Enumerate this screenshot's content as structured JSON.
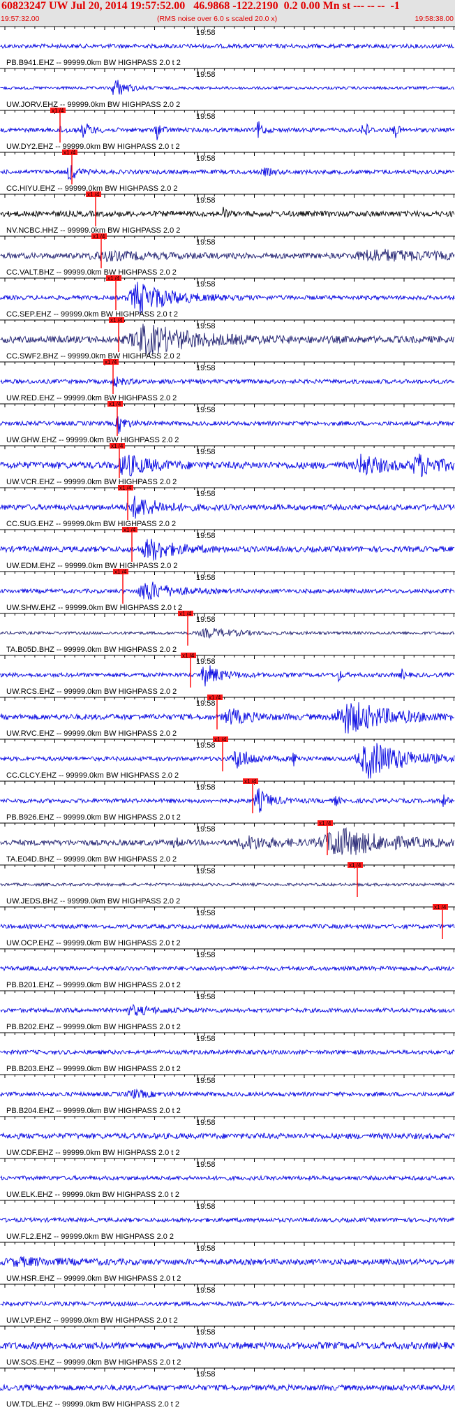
{
  "header": {
    "title": "60823247 UW Jul 20, 2014 19:57:52.00   46.9868 -122.2190  0.2 0.00 Mn st --- -- --  -1",
    "start_time": "19:57:32.00",
    "note": "(RMS noise over 6.0 s scaled 20.0 x)",
    "end_time": "19:58:38.00"
  },
  "minute_label": "19:58",
  "pick_label": "x1 /4",
  "traces": [
    {
      "label": "PB.B941.EHZ -- 99999.0km BW  HIGHPASS  2.0 t 2",
      "color": "#0000e0",
      "amp": 3,
      "events": [],
      "pick": null
    },
    {
      "label": "UW.JORV.EHZ -- 99999.0km BW  HIGHPASS  2.0  2",
      "color": "#0000e0",
      "amp": 2,
      "events": [
        [
          165,
          14,
          14
        ]
      ],
      "pick": null
    },
    {
      "label": "UW.DY2.EHZ -- 99999.0km BW  HIGHPASS  2.0 t 2",
      "color": "#0000e0",
      "amp": 3,
      "events": [
        [
          85,
          10,
          4
        ],
        [
          120,
          10,
          10
        ],
        [
          225,
          6,
          12
        ],
        [
          370,
          6,
          12
        ],
        [
          520,
          5,
          18
        ],
        [
          565,
          4,
          14
        ]
      ],
      "pick": 0.132
    },
    {
      "label": "CC.HIYU.EHZ -- 99999.0km BW  HIGHPASS  2.0  2",
      "color": "#0000e0",
      "amp": 3,
      "events": [
        [
          100,
          8,
          14
        ],
        [
          380,
          12,
          4
        ]
      ],
      "pick": 0.158
    },
    {
      "label": "NV.NCBC.HHZ -- 99999.0km BW  HIGHPASS  2.0  2",
      "color": "#000000",
      "amp": 4,
      "events": [
        [
          320,
          4,
          8
        ]
      ],
      "pick": 0.21
    },
    {
      "label": "CC.VALT.BHZ -- 99999.0km BW  HIGHPASS  2.0  2",
      "color": "#202070",
      "amp": 4,
      "events": [
        [
          150,
          60,
          5
        ],
        [
          540,
          80,
          7
        ]
      ],
      "pick": 0.222
    },
    {
      "label": "CC.SEP.EHZ -- 99999.0km BW  HIGHPASS  2.0 t 2",
      "color": "#0000e0",
      "amp": 3,
      "events": [
        [
          200,
          40,
          22
        ]
      ],
      "pick": 0.255
    },
    {
      "label": "CC.SWF2.BHZ -- 99999.0km BW  HIGHPASS  2.0  2",
      "color": "#202070",
      "amp": 5,
      "events": [
        [
          210,
          60,
          20
        ]
      ],
      "pick": 0.26
    },
    {
      "label": "UW.RED.EHZ -- 99999.0km BW  HIGHPASS  2.0  2",
      "color": "#0000e0",
      "amp": 3,
      "events": [
        [
          165,
          12,
          6
        ]
      ],
      "pick": 0.248
    },
    {
      "label": "UW.GHW.EHZ -- 99999.0km BW  HIGHPASS  2.0  2",
      "color": "#0000e0",
      "amp": 3,
      "events": [
        [
          170,
          10,
          12
        ]
      ],
      "pick": 0.257
    },
    {
      "label": "UW.VCR.EHZ -- 99999.0km BW  HIGHPASS  2.0  2",
      "color": "#0000e0",
      "amp": 5,
      "events": [
        [
          180,
          30,
          14
        ],
        [
          520,
          25,
          14
        ],
        [
          600,
          25,
          14
        ]
      ],
      "pick": 0.262
    },
    {
      "label": "CC.SUG.EHZ -- 99999.0km BW  HIGHPASS  2.0  2",
      "color": "#0000e0",
      "amp": 4,
      "events": [
        [
          195,
          30,
          14
        ]
      ],
      "pick": 0.28
    },
    {
      "label": "UW.EDM.EHZ -- 99999.0km BW  HIGHPASS  2.0  2",
      "color": "#0000e0",
      "amp": 4,
      "events": [
        [
          215,
          30,
          15
        ]
      ],
      "pick": 0.29
    },
    {
      "label": "UW.SHW.EHZ -- 99999.0km BW  HIGHPASS  2.0 t 2",
      "color": "#0000e0",
      "amp": 3,
      "events": [
        [
          210,
          30,
          14
        ]
      ],
      "pick": 0.27
    },
    {
      "label": "TA.B05D.BHZ -- 99999.0km BW  HIGHPASS  2.0  2",
      "color": "#202070",
      "amp": 2,
      "events": [
        [
          300,
          40,
          6
        ]
      ],
      "pick": 0.413
    },
    {
      "label": "UW.RCS.EHZ -- 99999.0km BW  HIGHPASS  2.0  2",
      "color": "#0000e0",
      "amp": 3,
      "events": [
        [
          295,
          20,
          14
        ],
        [
          485,
          4,
          8
        ],
        [
          575,
          4,
          8
        ]
      ],
      "pick": 0.418
    },
    {
      "label": "UW.RVC.EHZ -- 99999.0km BW  HIGHPASS  2.0  2",
      "color": "#0000e0",
      "amp": 4,
      "events": [
        [
          330,
          25,
          10
        ],
        [
          500,
          50,
          22
        ]
      ],
      "pick": 0.477
    },
    {
      "label": "CC.CLCY.EHZ -- 99999.0km BW  HIGHPASS  2.0  2",
      "color": "#0000e0",
      "amp": 3,
      "events": [
        [
          340,
          20,
          14
        ],
        [
          420,
          5,
          10
        ],
        [
          530,
          45,
          26
        ]
      ],
      "pick": 0.49
    },
    {
      "label": "PB.B926.EHZ -- 99999.0km BW  HIGHPASS  2.0 t 2",
      "color": "#0000e0",
      "amp": 3,
      "events": [
        [
          370,
          15,
          16
        ],
        [
          480,
          4,
          8
        ],
        [
          635,
          4,
          10
        ]
      ],
      "pick": 0.555
    },
    {
      "label": "TA.E04D.BHZ -- 99999.0km BW  HIGHPASS  2.0  2",
      "color": "#202070",
      "amp": 4,
      "events": [
        [
          250,
          5,
          8
        ],
        [
          355,
          40,
          8
        ],
        [
          485,
          60,
          20
        ]
      ],
      "pick": 0.72
    },
    {
      "label": "UW.JEDS.BHZ -- 99999.0km BW  HIGHPASS  2.0  2",
      "color": "#202070",
      "amp": 2,
      "events": [],
      "pick": 0.785
    },
    {
      "label": "UW.OCP.EHZ -- 99999.0km BW  HIGHPASS  2.0 t 2",
      "color": "#0000e0",
      "amp": 3,
      "events": [],
      "pick": 0.972
    },
    {
      "label": "PB.B201.EHZ -- 99999.0km BW  HIGHPASS  2.0 t 2",
      "color": "#0000e0",
      "amp": 3,
      "events": [],
      "pick": null
    },
    {
      "label": "PB.B202.EHZ -- 99999.0km BW  HIGHPASS  2.0 t 2",
      "color": "#0000e0",
      "amp": 3,
      "events": [
        [
          190,
          30,
          6
        ]
      ],
      "pick": null
    },
    {
      "label": "PB.B203.EHZ -- 99999.0km BW  HIGHPASS  2.0 t 2",
      "color": "#0000e0",
      "amp": 3,
      "events": [],
      "pick": null
    },
    {
      "label": "PB.B204.EHZ -- 99999.0km BW  HIGHPASS  2.0 t 2",
      "color": "#0000e0",
      "amp": 3,
      "events": [
        [
          190,
          20,
          5
        ]
      ],
      "pick": null
    },
    {
      "label": "UW.CDF.EHZ -- 99999.0km BW  HIGHPASS  2.0 t 2",
      "color": "#0000e0",
      "amp": 4,
      "events": [],
      "pick": null
    },
    {
      "label": "UW.ELK.EHZ -- 99999.0km BW  HIGHPASS  2.0 t 2",
      "color": "#0000e0",
      "amp": 3,
      "events": [],
      "pick": null
    },
    {
      "label": "UW.FL2.EHZ -- 99999.0km BW  HIGHPASS  2.0  2",
      "color": "#0000e0",
      "amp": 3,
      "events": [],
      "pick": null
    },
    {
      "label": "UW.HSR.EHZ -- 99999.0km BW  HIGHPASS  2.0 t 2",
      "color": "#0000e0",
      "amp": 4,
      "events": [
        [
          30,
          60,
          4
        ]
      ],
      "pick": null
    },
    {
      "label": "UW.LVP.EHZ -- 99999.0km BW  HIGHPASS  2.0 t 2",
      "color": "#0000e0",
      "amp": 3,
      "events": [],
      "pick": null
    },
    {
      "label": "UW.SOS.EHZ -- 99999.0km BW  HIGHPASS  2.0 t 2",
      "color": "#0000e0",
      "amp": 5,
      "events": [],
      "pick": null
    },
    {
      "label": "UW.TDL.EHZ -- 99999.0km BW  HIGHPASS  2.0 t 2",
      "color": "#0000e0",
      "amp": 4,
      "events": [],
      "pick": null
    }
  ]
}
